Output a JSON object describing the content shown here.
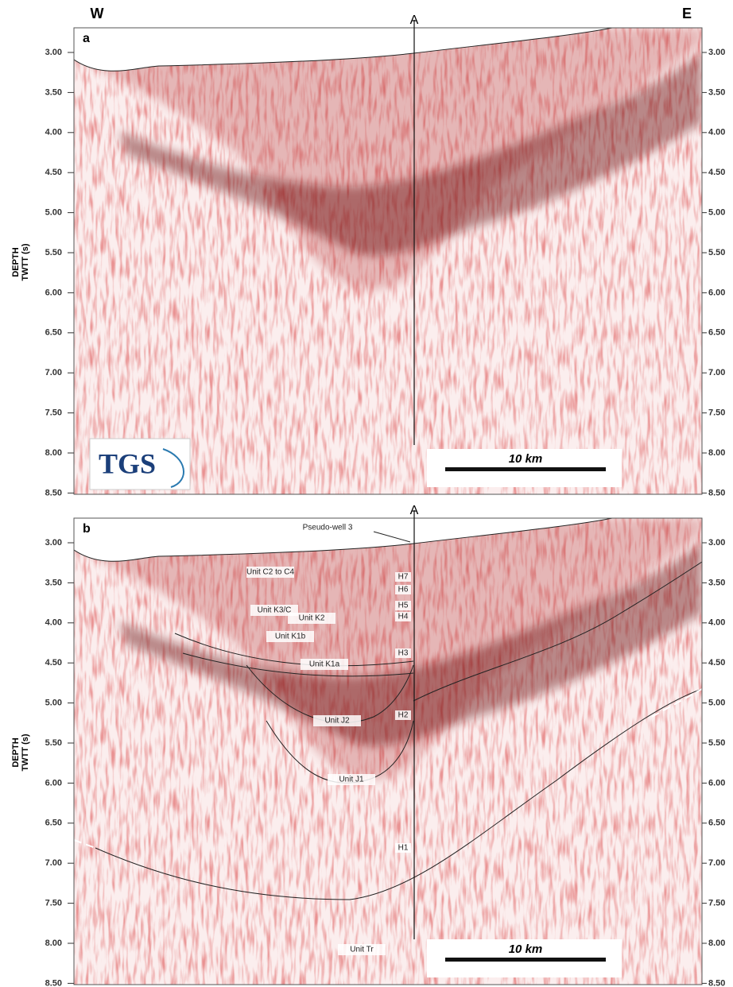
{
  "header": {
    "west": "W",
    "east": "E"
  },
  "panels": [
    {
      "label": "a",
      "well_marker": "A",
      "axis_title": [
        "DEPTH",
        "TWTT (s)"
      ],
      "ticks": [
        "3.00",
        "3.50",
        "4.00",
        "4.50",
        "5.00",
        "5.50",
        "6.00",
        "6.50",
        "7.00",
        "7.50",
        "8.00",
        "8.50"
      ],
      "logo": "TGS",
      "scale_bar": "10 km"
    },
    {
      "label": "b",
      "well_marker": "A",
      "axis_title": [
        "DEPTH",
        "TWTT (s)"
      ],
      "ticks": [
        "3.00",
        "3.50",
        "4.00",
        "4.50",
        "5.00",
        "5.50",
        "6.00",
        "6.50",
        "7.00",
        "7.50",
        "8.00",
        "8.50"
      ],
      "scale_bar": "10 km",
      "well_label": "Pseudo-well 3",
      "units": [
        "Unit C2 to C4",
        "Unit K3/C",
        "Unit K2",
        "Unit K1b",
        "Unit K1a",
        "Unit J2",
        "Unit J1",
        "Unit Tr"
      ],
      "horizons": [
        "H7",
        "H6",
        "H5",
        "H4",
        "H3",
        "H2",
        "H1"
      ]
    }
  ]
}
